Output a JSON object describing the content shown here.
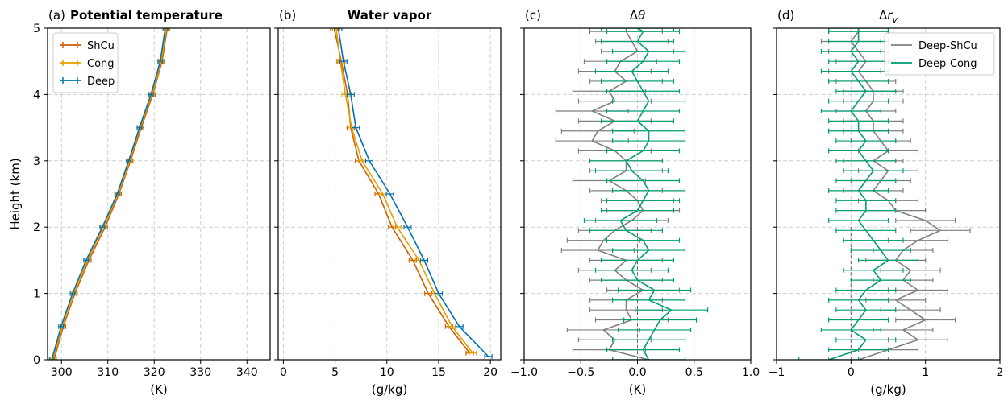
{
  "figure": {
    "ylabel": "Height (km)",
    "yticks": [
      "0",
      "1",
      "2",
      "3",
      "4",
      "5"
    ],
    "ylim": [
      0,
      5
    ]
  },
  "chart_data": [
    {
      "type": "line",
      "panel": "(a)",
      "title": "Potential temperature",
      "title_bold": true,
      "xlabel": "(K)",
      "xlim": [
        297,
        345
      ],
      "xticks": [
        300,
        310,
        320,
        330,
        340
      ],
      "xtick_labels": [
        "300",
        "310",
        "320",
        "330",
        "340"
      ],
      "grid": true,
      "legend_position": "top-left",
      "error_bars": true,
      "series": [
        {
          "name": "ShCu",
          "color": "#d55e00",
          "x": [
            298.4,
            300.4,
            302.9,
            305.9,
            309.4,
            312.4,
            314.9,
            317.2,
            319.7,
            321.7,
            322.8
          ],
          "y": [
            0,
            0.5,
            1.0,
            1.5,
            2.0,
            2.5,
            3.0,
            3.5,
            4.0,
            4.5,
            5.0
          ]
        },
        {
          "name": "Cong",
          "color": "#e69f00",
          "x": [
            298.1,
            300.2,
            302.7,
            305.6,
            309.0,
            312.2,
            314.7,
            316.9,
            319.5,
            321.5,
            322.6
          ],
          "y": [
            0,
            0.5,
            1.0,
            1.5,
            2.0,
            2.5,
            3.0,
            3.5,
            4.0,
            4.5,
            5.0
          ]
        },
        {
          "name": "Deep",
          "color": "#0072b2",
          "x": [
            297.9,
            299.9,
            302.4,
            305.3,
            308.8,
            312.0,
            314.5,
            316.8,
            319.3,
            321.3,
            322.4
          ],
          "y": [
            0,
            0.5,
            1.0,
            1.5,
            2.0,
            2.5,
            3.0,
            3.5,
            4.0,
            4.5,
            5.0
          ]
        }
      ]
    },
    {
      "type": "line",
      "panel": "(b)",
      "title": "Water vapor",
      "title_bold": true,
      "xlabel": "(g/kg)",
      "xlim": [
        -0.5,
        21
      ],
      "xticks": [
        0,
        5,
        10,
        15,
        20
      ],
      "xtick_labels": [
        "0",
        "5",
        "10",
        "15",
        "20"
      ],
      "grid": true,
      "error_bars": true,
      "series": [
        {
          "name": "ShCu",
          "color": "#d55e00",
          "x": [
            18.0,
            16.0,
            14.0,
            12.5,
            10.5,
            9.2,
            7.3,
            6.5,
            6.2,
            5.6,
            4.9
          ],
          "y": [
            0.1,
            0.5,
            1.0,
            1.5,
            2.0,
            2.5,
            3.0,
            3.5,
            4.0,
            4.5,
            5.0
          ]
        },
        {
          "name": "Cong",
          "color": "#e69f00",
          "x": [
            18.3,
            16.3,
            14.6,
            13.1,
            11.0,
            9.6,
            7.6,
            6.6,
            6.0,
            5.5,
            5.1
          ],
          "y": [
            0.1,
            0.5,
            1.0,
            1.5,
            2.0,
            2.5,
            3.0,
            3.5,
            4.0,
            4.5,
            5.0
          ]
        },
        {
          "name": "Deep",
          "color": "#0072b2",
          "x": [
            19.8,
            17.0,
            15.0,
            13.6,
            12.0,
            10.3,
            8.3,
            7.0,
            6.5,
            5.8,
            5.3
          ],
          "y": [
            0.05,
            0.5,
            1.0,
            1.5,
            2.0,
            2.5,
            3.0,
            3.5,
            4.0,
            4.5,
            5.0
          ]
        }
      ]
    },
    {
      "type": "line",
      "panel": "(c)",
      "title": "Δθ",
      "title_bold": false,
      "xlabel": "(K)",
      "xlim": [
        -1.0,
        1.0
      ],
      "xticks": [
        -1.0,
        -0.5,
        0.0,
        0.5,
        1.0
      ],
      "xtick_labels": [
        "−1.0",
        "−0.5",
        "0.0",
        "0.5",
        "1.0"
      ],
      "grid": true,
      "error_bars": true,
      "error_halfwidth": 0.32,
      "series": [
        {
          "name": "Deep-ShCu",
          "color": "#808080",
          "x": [
            0.1,
            -0.25,
            -0.2,
            -0.3,
            -0.05,
            -0.1,
            -0.1,
            0.05,
            -0.1,
            -0.2,
            -0.1,
            -0.35,
            -0.3,
            -0.2,
            -0.05,
            0.05,
            0.0,
            -0.1,
            -0.25,
            -0.1,
            -0.1,
            -0.2,
            -0.4,
            -0.35,
            -0.2,
            -0.4,
            -0.2,
            -0.25,
            -0.1,
            -0.2,
            -0.15,
            0.0,
            -0.05,
            -0.1,
            -0.1
          ],
          "y": [
            0.0,
            0.15,
            0.3,
            0.45,
            0.6,
            0.75,
            0.9,
            1.05,
            1.2,
            1.35,
            1.5,
            1.65,
            1.8,
            1.95,
            2.1,
            2.25,
            2.4,
            2.55,
            2.7,
            2.85,
            3.0,
            3.15,
            3.3,
            3.45,
            3.6,
            3.75,
            3.9,
            4.05,
            4.2,
            4.35,
            4.5,
            4.65,
            4.8,
            4.95,
            5.0
          ]
        },
        {
          "name": "Deep-Cong",
          "color": "#009e73",
          "x": [
            0.1,
            0.05,
            0.1,
            0.15,
            0.2,
            0.3,
            0.1,
            0.15,
            0.0,
            -0.05,
            0.0,
            0.1,
            0.05,
            -0.1,
            -0.15,
            0.0,
            0.05,
            0.1,
            0.05,
            -0.05,
            -0.1,
            0.05,
            0.1,
            0.1,
            0.0,
            0.05,
            0.1,
            0.05,
            0.0,
            -0.05,
            0.05,
            0.1,
            0.0,
            0.05,
            0.0
          ],
          "y": [
            0.0,
            0.15,
            0.3,
            0.45,
            0.6,
            0.75,
            0.9,
            1.05,
            1.2,
            1.35,
            1.5,
            1.65,
            1.8,
            1.95,
            2.1,
            2.25,
            2.4,
            2.55,
            2.7,
            2.85,
            3.0,
            3.15,
            3.3,
            3.45,
            3.6,
            3.75,
            3.9,
            4.05,
            4.2,
            4.35,
            4.5,
            4.65,
            4.8,
            4.95,
            5.0
          ]
        }
      ]
    },
    {
      "type": "line",
      "panel": "(d)",
      "title": "Δr_v",
      "title_bold": false,
      "xlabel": "(g/kg)",
      "xlim": [
        -1,
        2
      ],
      "xticks": [
        -1,
        0,
        1,
        2
      ],
      "xtick_labels": [
        "−1",
        "0",
        "1",
        "2"
      ],
      "grid": true,
      "legend_position": "top-right",
      "error_bars": true,
      "error_halfwidth": 0.4,
      "series": [
        {
          "name": "Deep-ShCu",
          "color": "#808080",
          "x": [
            0.1,
            0.5,
            0.9,
            0.7,
            1.0,
            0.8,
            0.6,
            0.9,
            0.7,
            0.8,
            0.6,
            0.7,
            0.9,
            1.2,
            1.0,
            0.6,
            0.5,
            0.3,
            0.4,
            0.5,
            0.3,
            0.5,
            0.4,
            0.3,
            0.3,
            0.2,
            0.3,
            0.3,
            0.2,
            0.1,
            0.2,
            0.1,
            0.0,
            0.1,
            0.1
          ],
          "y": [
            0.0,
            0.15,
            0.3,
            0.45,
            0.6,
            0.75,
            0.9,
            1.05,
            1.2,
            1.35,
            1.5,
            1.65,
            1.8,
            1.95,
            2.1,
            2.25,
            2.4,
            2.55,
            2.7,
            2.85,
            3.0,
            3.15,
            3.3,
            3.45,
            3.6,
            3.75,
            3.9,
            4.05,
            4.2,
            4.35,
            4.5,
            4.65,
            4.8,
            4.95,
            5.0
          ]
        },
        {
          "name": "Deep-Cong",
          "color": "#009e73",
          "x": [
            -0.3,
            0.1,
            0.2,
            0.0,
            0.1,
            0.2,
            0.1,
            0.2,
            0.4,
            0.3,
            0.5,
            0.4,
            0.3,
            0.2,
            0.1,
            0.2,
            0.2,
            0.1,
            0.2,
            0.3,
            0.2,
            0.1,
            0.2,
            0.1,
            0.1,
            0.0,
            0.1,
            0.2,
            0.1,
            0.0,
            0.1,
            0.0,
            0.1,
            0.1,
            0.1
          ],
          "y": [
            0.0,
            0.15,
            0.3,
            0.45,
            0.6,
            0.75,
            0.9,
            1.05,
            1.2,
            1.35,
            1.5,
            1.65,
            1.8,
            1.95,
            2.1,
            2.25,
            2.4,
            2.55,
            2.7,
            2.85,
            3.0,
            3.15,
            3.3,
            3.45,
            3.6,
            3.75,
            3.9,
            4.05,
            4.2,
            4.35,
            4.5,
            4.65,
            4.8,
            4.95,
            5.0
          ]
        }
      ]
    }
  ]
}
